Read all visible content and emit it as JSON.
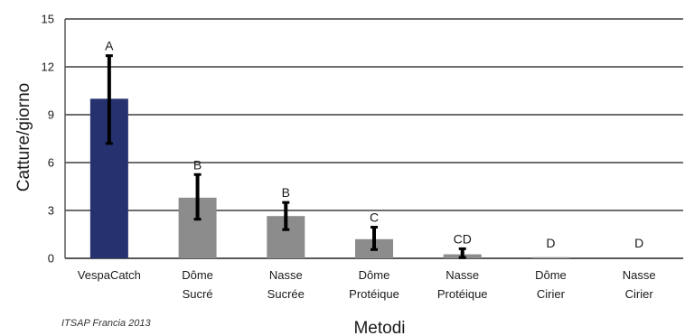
{
  "colors": {
    "highlight_bar": "#263170",
    "bar": "#8c8c8c",
    "grid": "#595959",
    "error_bar": "#000000"
  },
  "source_note": "ITSAP Francia 2013",
  "chart_data": {
    "type": "bar",
    "categories": [
      [
        "VespaCatch"
      ],
      [
        "Dôme",
        "Sucré"
      ],
      [
        "Nasse",
        "Sucrée"
      ],
      [
        "Dôme",
        "Protéique"
      ],
      [
        "Nasse",
        "Protéique"
      ],
      [
        "Dôme",
        "Cirier"
      ],
      [
        "Nasse",
        "Cirier"
      ]
    ],
    "values": [
      10.0,
      3.8,
      2.65,
      1.2,
      0.25,
      0.07,
      0.0
    ],
    "error_low": [
      7.2,
      2.45,
      1.8,
      0.55,
      0.05,
      null,
      null
    ],
    "error_high": [
      12.7,
      5.25,
      3.5,
      1.95,
      0.6,
      null,
      null
    ],
    "significance_letters": [
      "A",
      "B",
      "B",
      "C",
      "CD",
      "D",
      "D"
    ],
    "xlabel": "Metodi",
    "ylabel": "Catture/giorno",
    "ylim": [
      0,
      15
    ],
    "yticks": [
      0,
      3,
      6,
      9,
      12,
      15
    ],
    "grid": true,
    "legend": "none"
  }
}
